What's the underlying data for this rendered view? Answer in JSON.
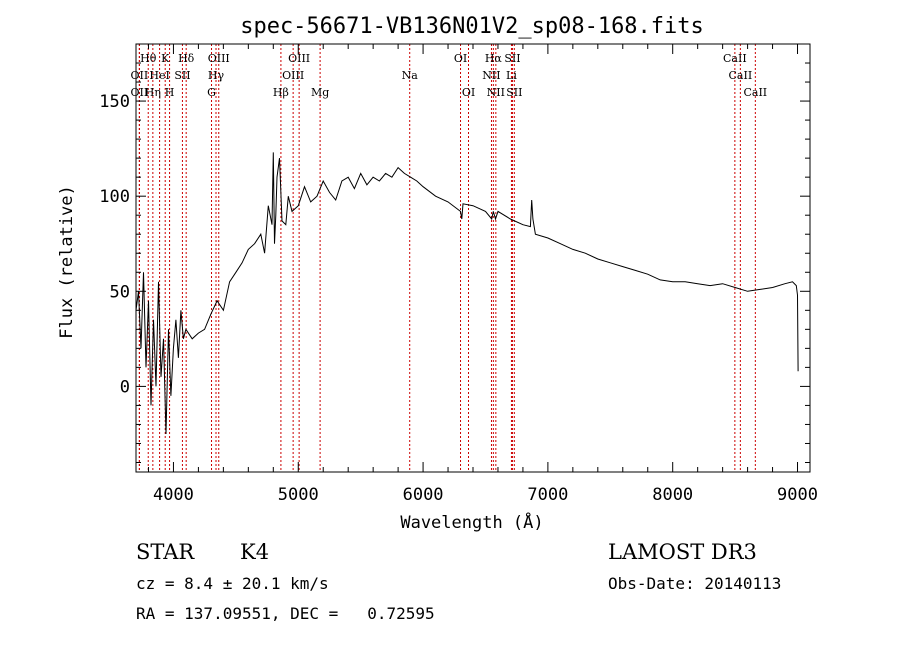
{
  "chart_data": {
    "type": "line",
    "title": "spec-56671-VB136N01V2_sp08-168.fits",
    "xlabel": "Wavelength (Å)",
    "ylabel": "Flux (relative)",
    "xlim": [
      3700,
      9100
    ],
    "ylim": [
      -45,
      180
    ],
    "x_ticks": [
      4000,
      5000,
      6000,
      7000,
      8000,
      9000
    ],
    "y_ticks": [
      0,
      50,
      100,
      150
    ],
    "series": [
      {
        "name": "flux",
        "x": [
          3700,
          3720,
          3740,
          3760,
          3780,
          3800,
          3820,
          3840,
          3860,
          3880,
          3900,
          3920,
          3940,
          3960,
          3980,
          4000,
          4020,
          4040,
          4060,
          4080,
          4100,
          4150,
          4200,
          4250,
          4300,
          4350,
          4400,
          4450,
          4500,
          4550,
          4600,
          4650,
          4700,
          4730,
          4760,
          4790,
          4800,
          4810,
          4820,
          4830,
          4850,
          4870,
          4900,
          4920,
          4950,
          5000,
          5050,
          5100,
          5150,
          5200,
          5250,
          5300,
          5350,
          5400,
          5450,
          5500,
          5550,
          5600,
          5650,
          5700,
          5750,
          5800,
          5850,
          5900,
          5950,
          6000,
          6100,
          6200,
          6300,
          6310,
          6320,
          6400,
          6500,
          6550,
          6563,
          6580,
          6600,
          6700,
          6800,
          6860,
          6870,
          6880,
          6900,
          7000,
          7100,
          7200,
          7300,
          7400,
          7500,
          7600,
          7700,
          7800,
          7900,
          8000,
          8100,
          8200,
          8300,
          8400,
          8500,
          8600,
          8700,
          8800,
          8900,
          8960,
          8990,
          9000,
          9005
        ],
        "y": [
          40,
          50,
          20,
          60,
          10,
          45,
          -10,
          35,
          0,
          55,
          5,
          25,
          -25,
          30,
          -5,
          20,
          35,
          15,
          40,
          25,
          30,
          25,
          28,
          30,
          38,
          45,
          40,
          55,
          60,
          65,
          72,
          75,
          80,
          70,
          95,
          85,
          123,
          75,
          90,
          110,
          120,
          87,
          85,
          100,
          92,
          95,
          105,
          97,
          100,
          108,
          102,
          98,
          108,
          110,
          104,
          112,
          106,
          110,
          108,
          112,
          110,
          115,
          112,
          110,
          108,
          105,
          100,
          97,
          92,
          88,
          96,
          95,
          92,
          88,
          92,
          88,
          92,
          88,
          85,
          84,
          98,
          88,
          80,
          78,
          75,
          72,
          70,
          67,
          65,
          63,
          61,
          59,
          56,
          55,
          55,
          54,
          53,
          54,
          52,
          50,
          51,
          52,
          54,
          55,
          53,
          48,
          8
        ]
      }
    ],
    "lines": [
      {
        "label": "Hθ",
        "w": 3798,
        "row": 0
      },
      {
        "label": "OII",
        "w": 3727,
        "row": 1
      },
      {
        "label": "OII",
        "w": 3727,
        "row": 2
      },
      {
        "label": "Hη",
        "w": 3835,
        "row": 2
      },
      {
        "label": "HeI",
        "w": 3889,
        "row": 1
      },
      {
        "label": "K",
        "w": 3934,
        "row": 0
      },
      {
        "label": "H",
        "w": 3969,
        "row": 2
      },
      {
        "label": "SII",
        "w": 4072,
        "row": 1
      },
      {
        "label": "Hδ",
        "w": 4102,
        "row": 0
      },
      {
        "label": "G",
        "w": 4305,
        "row": 2
      },
      {
        "label": "OIII",
        "w": 4363,
        "row": 0
      },
      {
        "label": "Hγ",
        "w": 4341,
        "row": 1
      },
      {
        "label": "Hβ",
        "w": 4861,
        "row": 2
      },
      {
        "label": "OIII",
        "w": 5007,
        "row": 0
      },
      {
        "label": "OIII",
        "w": 4959,
        "row": 1
      },
      {
        "label": "Mg",
        "w": 5175,
        "row": 2
      },
      {
        "label": "Na",
        "w": 5893,
        "row": 1
      },
      {
        "label": "OI",
        "w": 6300,
        "row": 0
      },
      {
        "label": "OI",
        "w": 6364,
        "row": 2
      },
      {
        "label": "Hα",
        "w": 6563,
        "row": 0
      },
      {
        "label": "NII",
        "w": 6548,
        "row": 1
      },
      {
        "label": "NII",
        "w": 6583,
        "row": 2
      },
      {
        "label": "SII",
        "w": 6716,
        "row": 0
      },
      {
        "label": "Li",
        "w": 6708,
        "row": 1
      },
      {
        "label": "SII",
        "w": 6731,
        "row": 2
      },
      {
        "label": "CaII",
        "w": 8498,
        "row": 0
      },
      {
        "label": "CaII",
        "w": 8542,
        "row": 1
      },
      {
        "label": "CaII",
        "w": 8662,
        "row": 2
      }
    ]
  },
  "info": {
    "class": "STAR",
    "subclass": "K4",
    "survey": "LAMOST DR3",
    "cz": "cz = 8.4 ± 20.1 km/s",
    "obs_date": "Obs-Date: 20140113",
    "radec": "RA = 137.09551, DEC =   0.72595"
  },
  "colors": {
    "line": "#000000",
    "marker": "#cc0000"
  }
}
